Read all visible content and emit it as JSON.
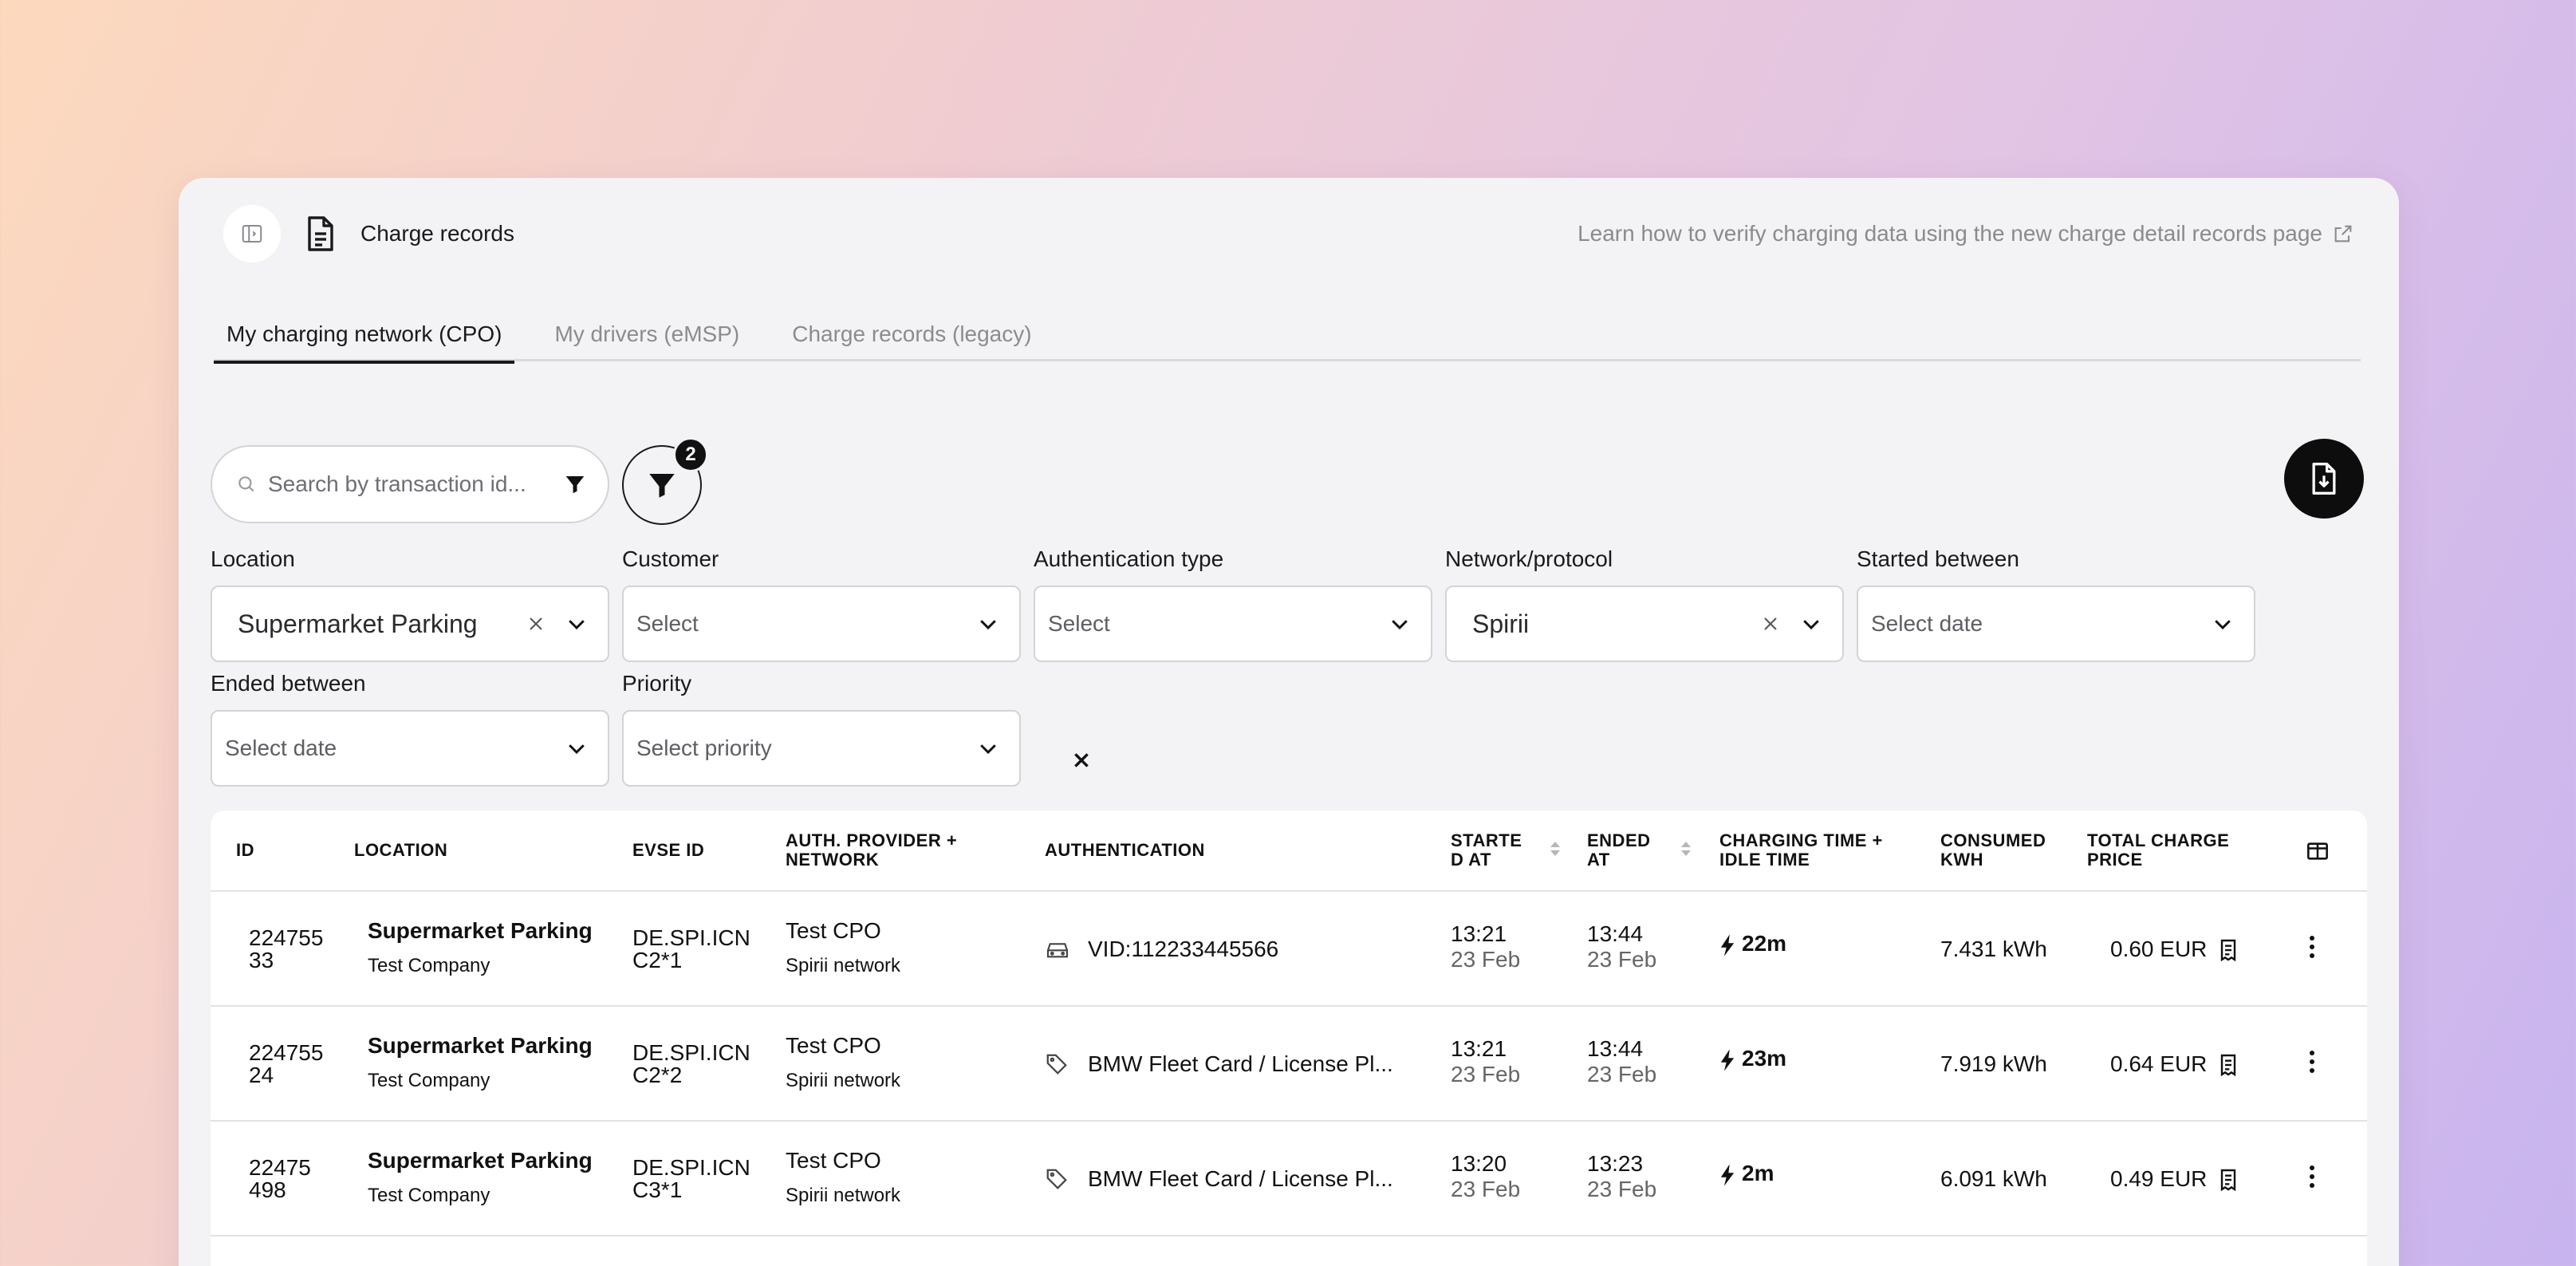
{
  "header": {
    "title": "Charge records",
    "learn_link": "Learn how to verify charging data using the new charge detail records page"
  },
  "tabs": [
    {
      "label": "My charging network (CPO)",
      "active": true
    },
    {
      "label": "My drivers (eMSP)",
      "active": false
    },
    {
      "label": "Charge records (legacy)",
      "active": false
    }
  ],
  "search": {
    "placeholder": "Search by transaction id..."
  },
  "filter_badge": "2",
  "filters": {
    "location": {
      "label": "Location",
      "value": "Supermarket Parking"
    },
    "customer": {
      "label": "Customer",
      "placeholder": "Select"
    },
    "auth_type": {
      "label": "Authentication type",
      "placeholder": "Select"
    },
    "network": {
      "label": "Network/protocol",
      "value": "Spirii"
    },
    "started": {
      "label": "Started between",
      "placeholder": "Select date"
    },
    "ended": {
      "label": "Ended between",
      "placeholder": "Select date"
    },
    "priority": {
      "label": "Priority",
      "placeholder": "Select priority"
    }
  },
  "table": {
    "headers": {
      "id": "ID",
      "location": "LOCATION",
      "evse": "EVSE ID",
      "auth_provider_1": "AUTH. PROVIDER +",
      "auth_provider_2": "NETWORK",
      "authentication": "AUTHENTICATION",
      "started_1": "STARTE",
      "started_2": "D AT",
      "ended_1": "ENDED",
      "ended_2": "AT",
      "charging_1": "CHARGING TIME +",
      "charging_2": "IDLE TIME",
      "consumed_1": "CONSUMED",
      "consumed_2": "KWH",
      "price_1": "TOTAL CHARGE",
      "price_2": "PRICE"
    },
    "rows": [
      {
        "id_1": "224755",
        "id_2": "33",
        "location": "Supermarket Parking",
        "company": "Test Company",
        "evse_1": "DE.SPI.ICN",
        "evse_2": "C2*1",
        "provider": "Test CPO",
        "network": "Spirii network",
        "auth_icon": "car-icon",
        "auth": "VID:112233445566",
        "start_time": "13:21",
        "start_date": "23 Feb",
        "end_time": "13:44",
        "end_date": "23 Feb",
        "charging": "22m",
        "consumed": "7.431 kWh",
        "price": "0.60 EUR"
      },
      {
        "id_1": "224755",
        "id_2": "24",
        "location": "Supermarket Parking",
        "company": "Test Company",
        "evse_1": "DE.SPI.ICN",
        "evse_2": "C2*2",
        "provider": "Test CPO",
        "network": "Spirii network",
        "auth_icon": "tag-icon",
        "auth": "BMW Fleet Card / License Pl...",
        "start_time": "13:21",
        "start_date": "23 Feb",
        "end_time": "13:44",
        "end_date": "23 Feb",
        "charging": "23m",
        "consumed": "7.919 kWh",
        "price": "0.64 EUR"
      },
      {
        "id_1": "22475",
        "id_2": "498",
        "location": "Supermarket Parking",
        "company": "Test Company",
        "evse_1": "DE.SPI.ICN",
        "evse_2": "C3*1",
        "provider": "Test CPO",
        "network": "Spirii network",
        "auth_icon": "tag-icon",
        "auth": "BMW Fleet Card / License Pl...",
        "start_time": "13:20",
        "start_date": "23 Feb",
        "end_time": "13:23",
        "end_date": "23 Feb",
        "charging": "2m",
        "consumed": "6.091 kWh",
        "price": "0.49 EUR"
      }
    ]
  }
}
